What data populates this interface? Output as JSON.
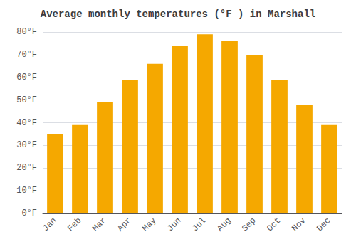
{
  "chart_data": {
    "type": "bar",
    "title": "Average monthly temperatures (°F ) in Marshall",
    "categories": [
      "Jan",
      "Feb",
      "Mar",
      "Apr",
      "May",
      "Jun",
      "Jul",
      "Aug",
      "Sep",
      "Oct",
      "Nov",
      "Dec"
    ],
    "values": [
      35,
      39,
      49,
      59,
      66,
      74,
      79,
      76,
      70,
      59,
      48,
      39
    ],
    "color": "#F5A800",
    "ylim": [
      0,
      80
    ],
    "yticks": [
      {
        "value": 0,
        "label": "0°F"
      },
      {
        "value": 10,
        "label": "10°F"
      },
      {
        "value": 20,
        "label": "20°F"
      },
      {
        "value": 30,
        "label": "30°F"
      },
      {
        "value": 40,
        "label": "40°F"
      },
      {
        "value": 50,
        "label": "50°F"
      },
      {
        "value": 60,
        "label": "60°F"
      },
      {
        "value": 70,
        "label": "70°F"
      },
      {
        "value": 80,
        "label": "80°F"
      }
    ],
    "grid": true
  }
}
